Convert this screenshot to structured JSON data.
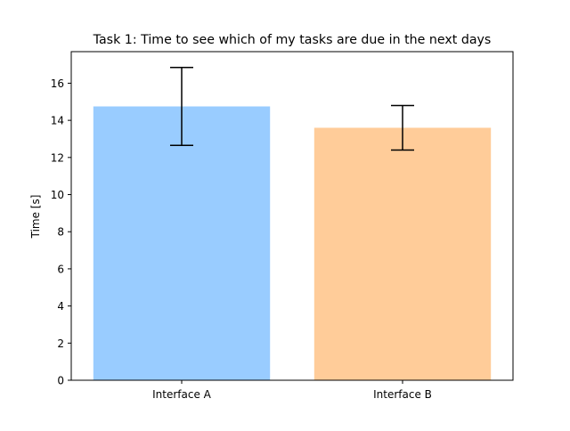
{
  "chart_data": {
    "type": "bar",
    "title": "Task 1: Time to see which of my tasks are due in the next days",
    "xlabel": "",
    "ylabel": "Time [s]",
    "categories": [
      "Interface A",
      "Interface B"
    ],
    "values": [
      14.75,
      13.6
    ],
    "error": [
      2.1,
      1.2
    ],
    "ylim": [
      0,
      17.7
    ],
    "yticks": [
      0,
      2,
      4,
      6,
      8,
      10,
      12,
      14,
      16
    ],
    "bar_colors": [
      "#99ccff",
      "#ffcc99"
    ],
    "grid": false,
    "legend": "none"
  }
}
